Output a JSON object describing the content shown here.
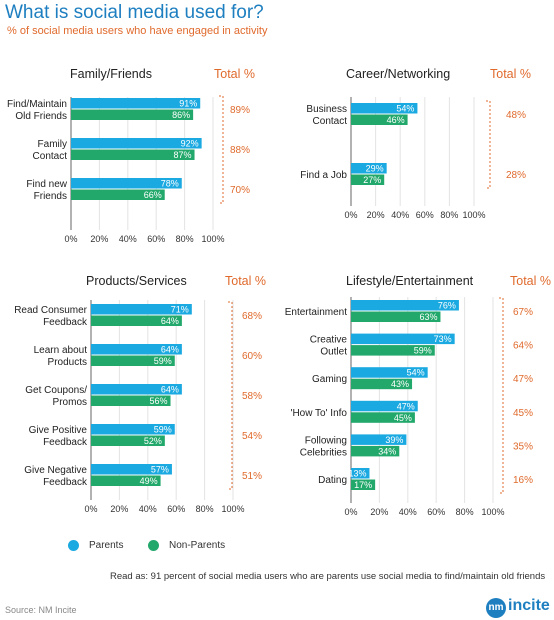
{
  "header": {
    "title": "What is social media used for?",
    "subtitle": "% of social media users who have engaged in activity"
  },
  "colors": {
    "parents": "#1ba9e1",
    "non_parents": "#23a86b",
    "total": "#e06a2c"
  },
  "legend": {
    "parents": "Parents",
    "non_parents": "Non-Parents"
  },
  "footnote": "Read as: 91 percent of social media users who are parents use social media to find/maintain old friends",
  "source": "Source: NM Incite",
  "logo": {
    "mark": "nm",
    "text": "incite"
  },
  "chart_data": [
    {
      "type": "bar",
      "title": "Family/Friends",
      "total_label": "Total %",
      "categories": [
        "Find/Maintain\nOld Friends",
        "Family\nContact",
        "Find new\nFriends"
      ],
      "series": [
        {
          "name": "Parents",
          "values": [
            91,
            92,
            78
          ]
        },
        {
          "name": "Non-Parents",
          "values": [
            86,
            87,
            66
          ]
        }
      ],
      "totals": [
        "89%",
        "88%",
        "70%"
      ],
      "xlim": [
        0,
        100
      ],
      "xticks": [
        "0%",
        "20%",
        "40%",
        "60%",
        "80%",
        "100%"
      ]
    },
    {
      "type": "bar",
      "title": "Career/Networking",
      "total_label": "Total %",
      "categories": [
        "Business\nContact",
        "Find a Job"
      ],
      "series": [
        {
          "name": "Parents",
          "values": [
            54,
            29
          ]
        },
        {
          "name": "Non-Parents",
          "values": [
            46,
            27
          ]
        }
      ],
      "totals": [
        "48%",
        "28%"
      ],
      "xlim": [
        0,
        100
      ],
      "xticks": [
        "0%",
        "20%",
        "40%",
        "60%",
        "80%",
        "100%"
      ]
    },
    {
      "type": "bar",
      "title": "Products/Services",
      "total_label": "Total %",
      "categories": [
        "Read Consumer\nFeedback",
        "Learn about\nProducts",
        "Get Coupons/\nPromos",
        "Give Positive\nFeedback",
        "Give Negative\nFeedback"
      ],
      "series": [
        {
          "name": "Parents",
          "values": [
            71,
            64,
            64,
            59,
            57
          ]
        },
        {
          "name": "Non-Parents",
          "values": [
            64,
            59,
            56,
            52,
            49
          ]
        }
      ],
      "totals": [
        "68%",
        "60%",
        "58%",
        "54%",
        "51%"
      ],
      "xlim": [
        0,
        100
      ],
      "xticks": [
        "0%",
        "20%",
        "40%",
        "60%",
        "80%",
        "100%"
      ]
    },
    {
      "type": "bar",
      "title": "Lifestyle/Entertainment",
      "total_label": "Total %",
      "categories": [
        "Entertainment",
        "Creative\nOutlet",
        "Gaming",
        "'How To' Info",
        "Following\nCelebrities",
        "Dating"
      ],
      "series": [
        {
          "name": "Parents",
          "values": [
            76,
            73,
            54,
            47,
            39,
            13
          ]
        },
        {
          "name": "Non-Parents",
          "values": [
            63,
            59,
            43,
            45,
            34,
            17
          ]
        }
      ],
      "totals": [
        "67%",
        "64%",
        "47%",
        "45%",
        "35%",
        "16%"
      ],
      "xlim": [
        0,
        100
      ],
      "xticks": [
        "0%",
        "20%",
        "40%",
        "60%",
        "80%",
        "100%"
      ]
    }
  ]
}
